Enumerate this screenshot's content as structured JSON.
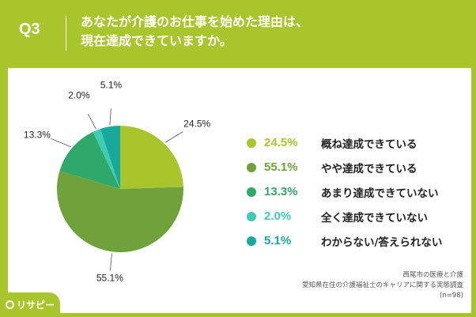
{
  "header": {
    "question_number": "Q3",
    "title_line1": "あなたが介護のお仕事を始めた理由は、",
    "title_line2": "現在達成できていますか。"
  },
  "colors": {
    "background": "#a8c62b",
    "panel": "#ffffff"
  },
  "chart_data": {
    "type": "pie",
    "title": "",
    "categories": [
      "概ね達成できている",
      "やや達成できている",
      "あまり達成できていない",
      "全く達成できていない",
      "わからない/答えられない"
    ],
    "values": [
      24.5,
      55.1,
      13.3,
      2.0,
      5.1
    ],
    "value_labels": [
      "24.5%",
      "55.1%",
      "13.3%",
      "2.0%",
      "5.1%"
    ],
    "colors": [
      "#a8c62b",
      "#6fa23a",
      "#2fa86c",
      "#3ecdb4",
      "#18a99a"
    ],
    "start": "12 o'clock",
    "direction": "clockwise",
    "legend_placement": "right"
  },
  "footer": {
    "source_line1": "西尾市の医療と介護",
    "source_line2": "愛知県在住の介護福祉士のキャリアに関する実態調査",
    "source_line3": "(n=98)",
    "brand": "リサピー"
  }
}
